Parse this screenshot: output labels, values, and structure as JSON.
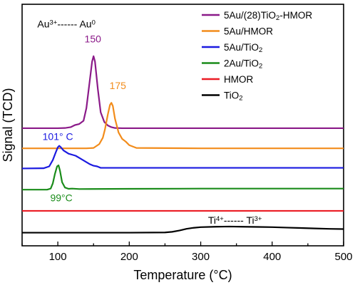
{
  "chart_data": {
    "type": "line",
    "xlabel": "Temperature (°C)",
    "ylabel": "Signal (TCD)",
    "xlim": [
      50,
      500
    ],
    "xticks": [
      100,
      200,
      300,
      400,
      500
    ],
    "yticks_visible": false,
    "grid": false,
    "legend_position": "top-right",
    "series": [
      {
        "name": "5Au/(28)TiO|2|-HMOR",
        "color": "#8B1A89",
        "x": [
          50,
          100,
          110,
          118,
          124,
          130,
          136,
          140,
          144,
          148,
          150,
          152,
          156,
          160,
          165,
          170,
          175,
          180,
          190,
          200,
          300,
          400,
          500
        ],
        "y": [
          5.55,
          5.55,
          5.56,
          5.6,
          5.7,
          5.75,
          5.9,
          6.5,
          7.6,
          8.7,
          8.95,
          8.7,
          7.4,
          6.3,
          5.85,
          5.68,
          5.6,
          5.56,
          5.55,
          5.55,
          5.55,
          5.55,
          5.55
        ]
      },
      {
        "name": "5Au/HMOR",
        "color": "#F28C1B",
        "x": [
          50,
          100,
          140,
          150,
          158,
          163,
          166,
          170,
          173,
          175,
          177,
          180,
          185,
          190,
          195,
          200,
          210,
          300,
          400,
          500
        ],
        "y": [
          4.6,
          4.6,
          4.6,
          4.62,
          4.8,
          5.1,
          5.5,
          6.2,
          6.65,
          6.75,
          6.6,
          6.0,
          5.35,
          5.05,
          4.92,
          4.75,
          4.62,
          4.6,
          4.6,
          4.6
        ]
      },
      {
        "name": "5Au/TiO|2|",
        "color": "#1B1AE0",
        "x": [
          50,
          80,
          88,
          93,
          97,
          100,
          102,
          104,
          108,
          115,
          120,
          125,
          130,
          135,
          140,
          145,
          150,
          155,
          160,
          200,
          300,
          400,
          500
        ],
        "y": [
          3.65,
          3.66,
          3.75,
          4.05,
          4.4,
          4.65,
          4.72,
          4.66,
          4.5,
          4.35,
          4.3,
          4.25,
          4.15,
          4.05,
          3.95,
          3.85,
          3.78,
          3.75,
          3.68,
          3.68,
          3.68,
          3.68,
          3.68
        ]
      },
      {
        "name": "2Au/TiO|2|",
        "color": "#1A8C1A",
        "x": [
          50,
          85,
          90,
          93,
          96,
          99,
          101,
          103,
          106,
          110,
          115,
          120,
          130,
          200,
          300,
          400,
          500
        ],
        "y": [
          2.65,
          2.65,
          2.7,
          2.95,
          3.4,
          3.75,
          3.8,
          3.55,
          3.0,
          2.75,
          2.69,
          2.7,
          2.68,
          2.69,
          2.7,
          2.7,
          2.7
        ]
      },
      {
        "name": "HMOR",
        "color": "#EB1C24",
        "x": [
          50,
          500
        ],
        "y": [
          1.65,
          1.65
        ]
      },
      {
        "name": "TiO|2|",
        "color": "#000000",
        "x": [
          50,
          150,
          200,
          250,
          260,
          270,
          280,
          290,
          300,
          320,
          340,
          360,
          380,
          400,
          420,
          440,
          460,
          480,
          500
        ],
        "y": [
          0.62,
          0.62,
          0.62,
          0.63,
          0.66,
          0.72,
          0.8,
          0.85,
          0.88,
          0.9,
          0.91,
          0.9,
          0.89,
          0.88,
          0.86,
          0.84,
          0.82,
          0.8,
          0.79
        ]
      }
    ],
    "ylim": [
      0,
      11.4
    ],
    "annotations": [
      {
        "text": "Au|3+|------ Au|0|",
        "x": 112,
        "y": 10.3,
        "color": "#000000",
        "anchor": "middle"
      },
      {
        "text": "150",
        "x": 149,
        "y": 9.6,
        "color": "#8B1A89",
        "anchor": "middle"
      },
      {
        "text": "175",
        "x": 184,
        "y": 7.4,
        "color": "#F28C1B",
        "anchor": "middle"
      },
      {
        "text": "101° C",
        "x": 100,
        "y": 5.0,
        "color": "#1B1AE0",
        "anchor": "middle"
      },
      {
        "text": "99°C",
        "x": 105,
        "y": 2.1,
        "color": "#1A8C1A",
        "anchor": "middle"
      },
      {
        "text": "Ti|4+|------ Ti|3+|",
        "x": 348,
        "y": 1.05,
        "color": "#000000",
        "anchor": "middle"
      }
    ]
  }
}
